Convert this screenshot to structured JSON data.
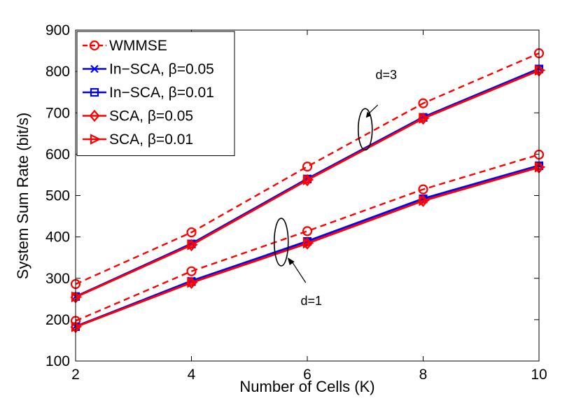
{
  "chart_data": {
    "type": "line",
    "title": "",
    "xlabel": "Number of Cells (K)",
    "ylabel": "System Sum Rate (bit/s)",
    "xlim": [
      2,
      10
    ],
    "ylim": [
      100,
      900
    ],
    "xticks": [
      2,
      4,
      6,
      8,
      10
    ],
    "yticks": [
      100,
      200,
      300,
      400,
      500,
      600,
      700,
      800,
      900
    ],
    "x": [
      2,
      4,
      6,
      8,
      10
    ],
    "legend_position": "top-left",
    "series": [
      {
        "name": "WMMSE",
        "group": "d=1",
        "color": "#ff0000",
        "dash": "dashed",
        "marker": "circle",
        "values": [
          197,
          317,
          414,
          515,
          599
        ]
      },
      {
        "name": "In−SCA, β=0.05",
        "group": "d=1",
        "color": "#0000ff",
        "dash": "solid",
        "marker": "x",
        "values": [
          184,
          294,
          390,
          493,
          573
        ]
      },
      {
        "name": "In−SCA, β=0.01",
        "group": "d=1",
        "color": "#0000ff",
        "dash": "solid",
        "marker": "square",
        "values": [
          183,
          292,
          389,
          492,
          572
        ]
      },
      {
        "name": "SCA, β=0.05",
        "group": "d=1",
        "color": "#ff0000",
        "dash": "solid",
        "marker": "diamond",
        "values": [
          182,
          289,
          384,
          487,
          568
        ]
      },
      {
        "name": "SCA, β=0.01",
        "group": "d=1",
        "color": "#ff0000",
        "dash": "solid",
        "marker": "triangle-right",
        "values": [
          183,
          290,
          385,
          488,
          569
        ]
      },
      {
        "name": "WMMSE",
        "group": "d=3",
        "color": "#ff0000",
        "dash": "dashed",
        "marker": "circle",
        "values": [
          286,
          411,
          570,
          723,
          844
        ]
      },
      {
        "name": "In−SCA, β=0.05",
        "group": "d=3",
        "color": "#0000ff",
        "dash": "solid",
        "marker": "x",
        "values": [
          256,
          384,
          541,
          690,
          807
        ]
      },
      {
        "name": "In−SCA, β=0.01",
        "group": "d=3",
        "color": "#0000ff",
        "dash": "solid",
        "marker": "square",
        "values": [
          256,
          383,
          540,
          689,
          806
        ]
      },
      {
        "name": "SCA, β=0.05",
        "group": "d=3",
        "color": "#ff0000",
        "dash": "solid",
        "marker": "diamond",
        "values": [
          254,
          380,
          537,
          686,
          802
        ]
      },
      {
        "name": "SCA, β=0.01",
        "group": "d=3",
        "color": "#ff0000",
        "dash": "solid",
        "marker": "triangle-right",
        "values": [
          255,
          381,
          538,
          687,
          803
        ]
      }
    ],
    "legend": [
      {
        "label": "WMMSE",
        "color": "#ff0000",
        "dash": "dashed",
        "marker": "circle"
      },
      {
        "label": "In−SCA, β=0.05",
        "color": "#0000ff",
        "dash": "solid",
        "marker": "x"
      },
      {
        "label": "In−SCA, β=0.01",
        "color": "#0000ff",
        "dash": "solid",
        "marker": "square"
      },
      {
        "label": "SCA, β=0.05",
        "color": "#ff0000",
        "dash": "solid",
        "marker": "diamond"
      },
      {
        "label": "SCA, β=0.01",
        "color": "#ff0000",
        "dash": "solid",
        "marker": "triangle-right"
      }
    ],
    "annotations": [
      {
        "text": "d=3",
        "anchor_x": 7,
        "anchor_y": 650,
        "ellipse_y_range": [
          610,
          710
        ]
      },
      {
        "text": "d=1",
        "anchor_x": 5.55,
        "anchor_y": 350,
        "ellipse_y_range": [
          330,
          445
        ]
      }
    ]
  }
}
